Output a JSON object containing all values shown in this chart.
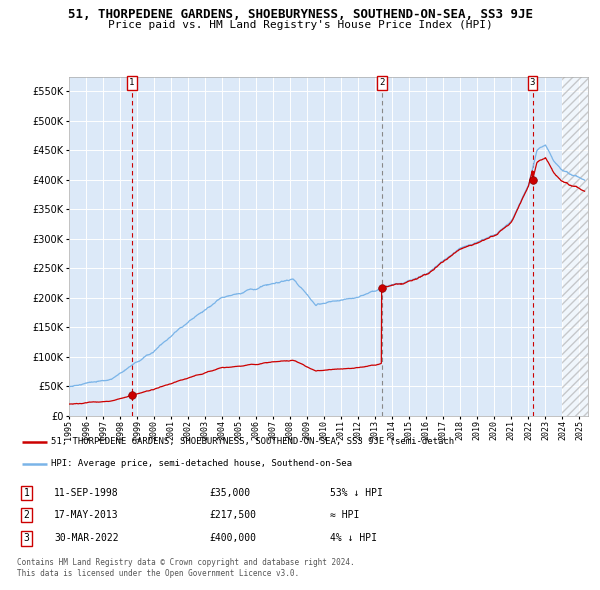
{
  "title": "51, THORPEDENE GARDENS, SHOEBURYNESS, SOUTHEND-ON-SEA, SS3 9JE",
  "subtitle": "Price paid vs. HM Land Registry's House Price Index (HPI)",
  "ylim": [
    0,
    575000
  ],
  "yticks": [
    0,
    50000,
    100000,
    150000,
    200000,
    250000,
    300000,
    350000,
    400000,
    450000,
    500000,
    550000
  ],
  "ytick_labels": [
    "£0",
    "£50K",
    "£100K",
    "£150K",
    "£200K",
    "£250K",
    "£300K",
    "£350K",
    "£400K",
    "£450K",
    "£500K",
    "£550K"
  ],
  "xlim_start": 1995.0,
  "xlim_end": 2025.5,
  "bg_color": "#dce9f8",
  "hpi_color": "#7ab4e8",
  "price_color": "#cc0000",
  "transactions": [
    {
      "num": 1,
      "date_x": 1998.69,
      "price": 35000,
      "label": "11-SEP-1998",
      "price_str": "£35,000",
      "hpi_str": "53% ↓ HPI"
    },
    {
      "num": 2,
      "date_x": 2013.37,
      "price": 217500,
      "label": "17-MAY-2013",
      "price_str": "£217,500",
      "hpi_str": "≈ HPI"
    },
    {
      "num": 3,
      "date_x": 2022.24,
      "price": 400000,
      "label": "30-MAR-2022",
      "price_str": "£400,000",
      "hpi_str": "4% ↓ HPI"
    }
  ],
  "legend_property_label": "51, THORPEDENE GARDENS, SHOEBURYNESS, SOUTHEND-ON-SEA, SS3 9JE (semi-detach",
  "legend_hpi_label": "HPI: Average price, semi-detached house, Southend-on-Sea",
  "footer1": "Contains HM Land Registry data © Crown copyright and database right 2024.",
  "footer2": "This data is licensed under the Open Government Licence v3.0.",
  "hatch_start": 2024.0
}
